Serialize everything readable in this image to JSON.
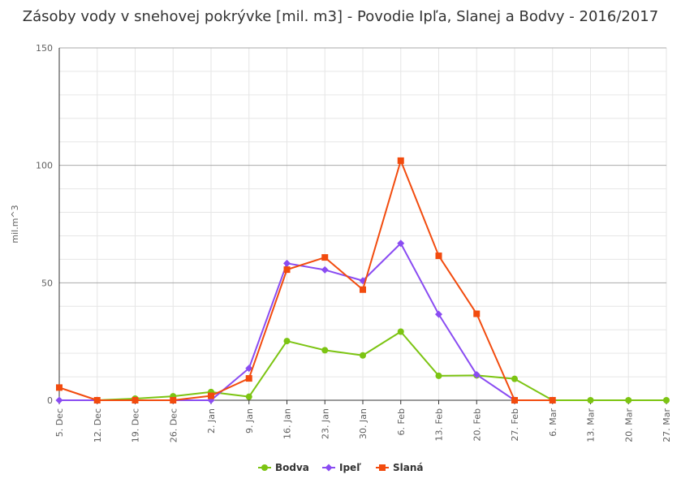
{
  "chart_data": {
    "type": "line",
    "title": "Zásoby vody v snehovej pokrývke [mil. m3] - Povodie Ipľa, Slanej a Bodvy - 2016/2017",
    "xlabel": "",
    "ylabel": "mil.m^3",
    "ylim": [
      0,
      150
    ],
    "yticks": [
      "0",
      "50",
      "100",
      "150"
    ],
    "categories": [
      "5. Dec",
      "12. Dec",
      "19. Dec",
      "26. Dec",
      "2. Jan",
      "9. Jan",
      "16. Jan",
      "23. Jan",
      "30. Jan",
      "6. Feb",
      "13. Feb",
      "20. Feb",
      "27. Feb",
      "6. Mar",
      "13. Mar",
      "20. Mar",
      "27. Mar"
    ],
    "grid": true,
    "legend": "bottom-center",
    "series": [
      {
        "name": "Bodva",
        "color": "#7cc412",
        "marker": "circle",
        "values": [
          null,
          0,
          0.7,
          1.7,
          3.5,
          1.5,
          25.2,
          21.3,
          19.1,
          29.2,
          10.4,
          10.6,
          9.1,
          0,
          0,
          0,
          0
        ]
      },
      {
        "name": "Ipeľ",
        "color": "#8a4cf2",
        "marker": "diamond",
        "values": [
          0,
          0,
          0,
          0,
          0,
          13.6,
          58.3,
          55.5,
          50.9,
          66.8,
          36.6,
          10.9,
          0,
          0,
          null,
          null,
          null
        ]
      },
      {
        "name": "Slaná",
        "color": "#f24b0e",
        "marker": "square",
        "values": [
          5.4,
          0,
          0,
          0,
          1.9,
          9.3,
          55.6,
          60.8,
          47.1,
          102.0,
          61.5,
          36.8,
          0,
          0,
          null,
          null,
          null
        ]
      }
    ]
  }
}
